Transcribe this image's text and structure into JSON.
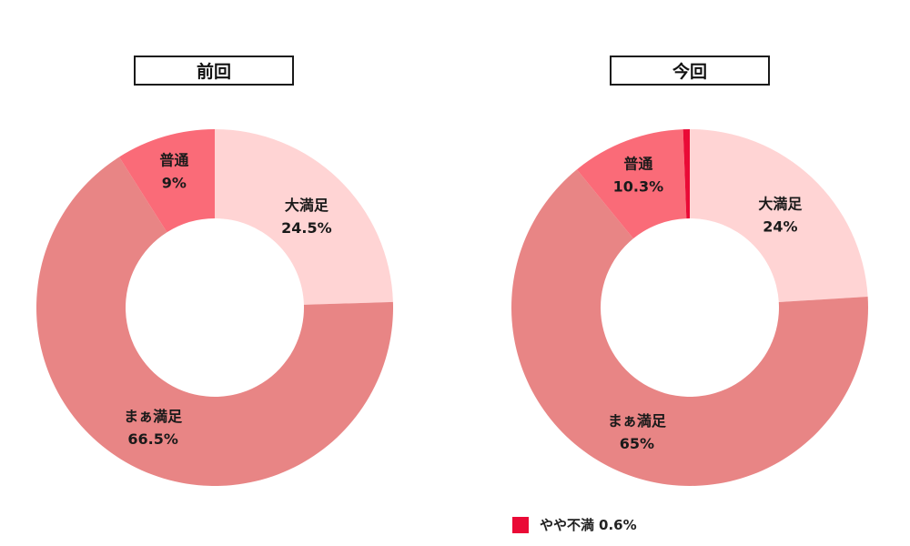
{
  "colors": {
    "very_satisfied": "#ffd4d4",
    "somewhat_satisfied": "#e88585",
    "neutral": "#fa6b78",
    "somewhat_dissatisfied": "#ea0a36"
  },
  "legend": {
    "label": "やや不満",
    "value": "0.6%"
  },
  "chart_data": [
    {
      "type": "pie",
      "title": "前回",
      "slices": [
        {
          "label": "大満足",
          "value": 24.5,
          "value_label": "24.5%",
          "color_key": "very_satisfied"
        },
        {
          "label": "まぁ満足",
          "value": 66.5,
          "value_label": "66.5%",
          "color_key": "somewhat_satisfied"
        },
        {
          "label": "普通",
          "value": 9,
          "value_label": "9%",
          "color_key": "neutral"
        }
      ]
    },
    {
      "type": "pie",
      "title": "今回",
      "slices": [
        {
          "label": "大満足",
          "value": 24,
          "value_label": "24%",
          "color_key": "very_satisfied"
        },
        {
          "label": "まぁ満足",
          "value": 65,
          "value_label": "65%",
          "color_key": "somewhat_satisfied"
        },
        {
          "label": "普通",
          "value": 10.3,
          "value_label": "10.3%",
          "color_key": "neutral"
        },
        {
          "label": "やや不満",
          "value": 0.6,
          "value_label": "0.6%",
          "color_key": "somewhat_dissatisfied"
        }
      ]
    }
  ]
}
